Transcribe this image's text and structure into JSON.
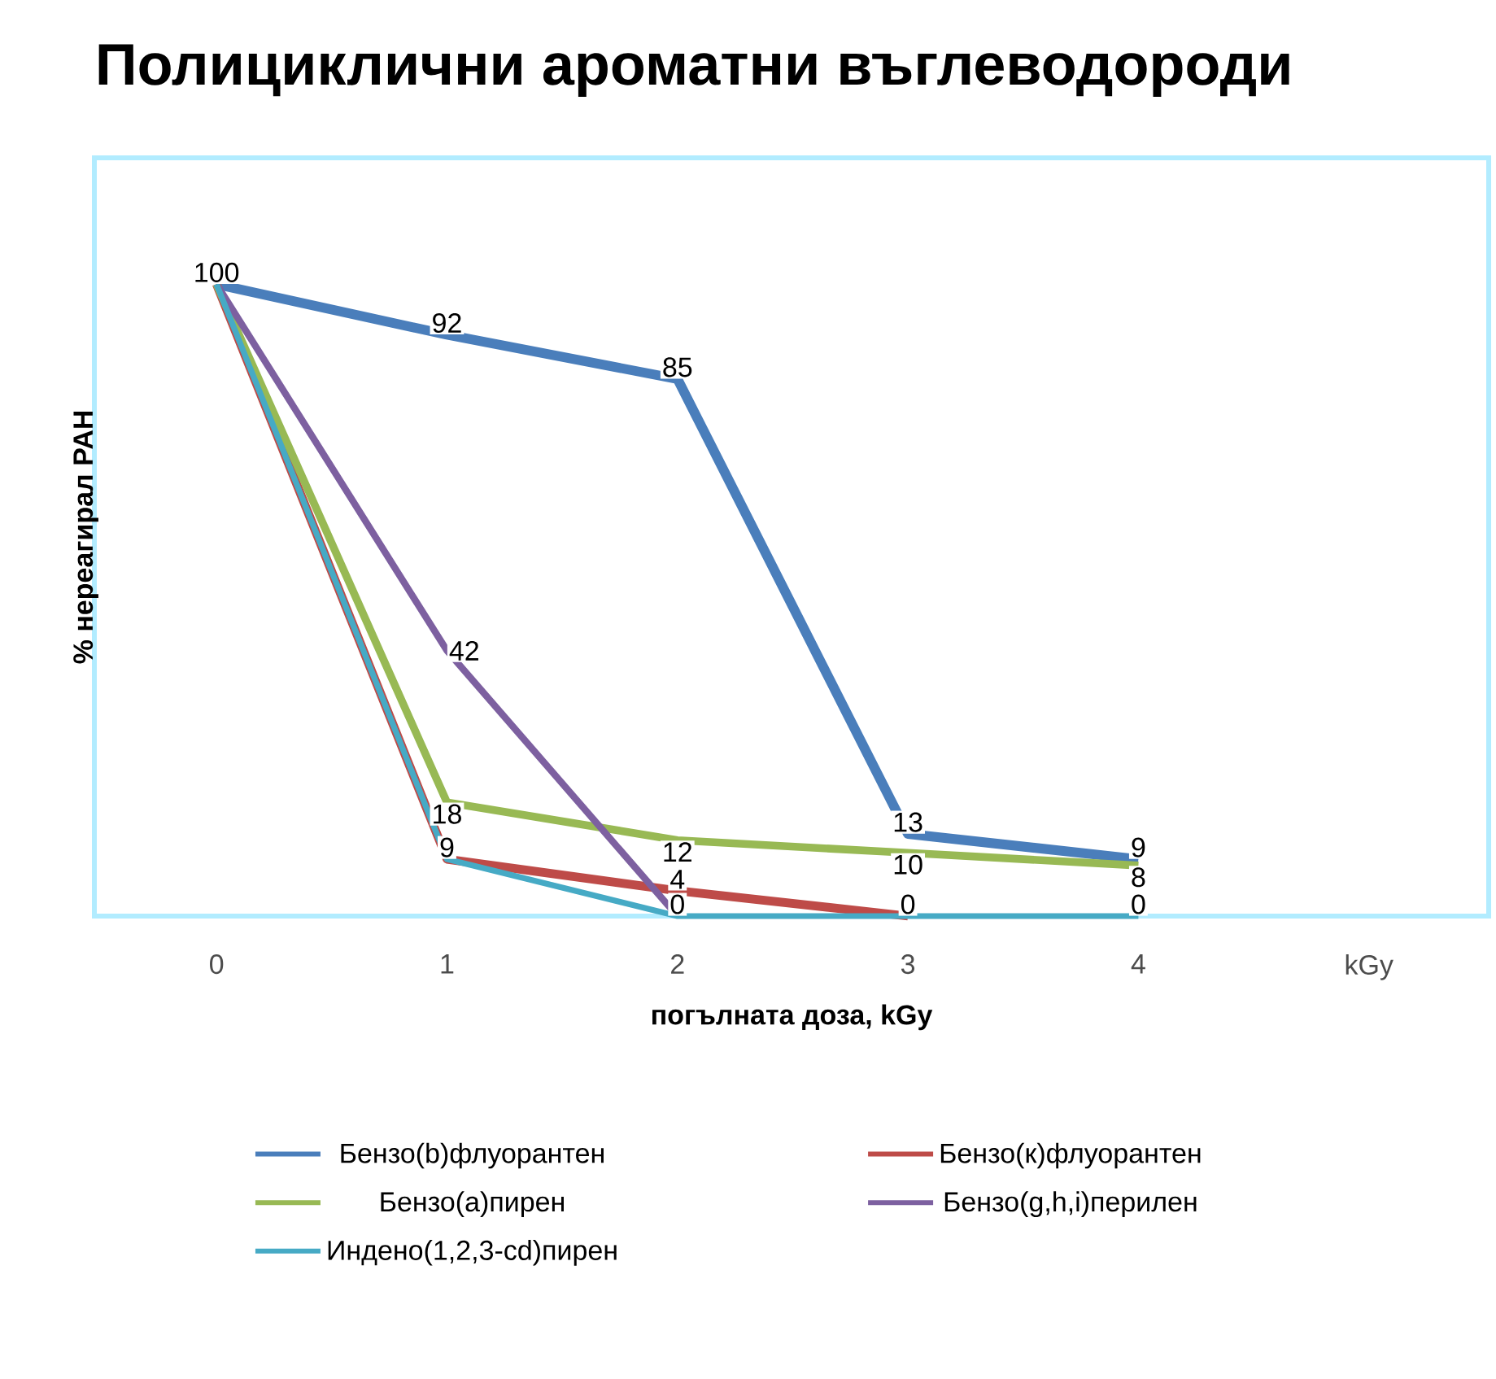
{
  "chart_data": {
    "type": "line",
    "title": "Полициклични ароматни въглеводороди",
    "xlabel": "погълната доза, kGy",
    "ylabel": "% нереагирал PAH",
    "categories": [
      "0",
      "1",
      "2",
      "3",
      "4",
      "kGy"
    ],
    "ylim": [
      0,
      120
    ],
    "tick_labels": "x",
    "legend": "bottom",
    "grid": false,
    "marker": "none",
    "line_style": "solid",
    "series": [
      {
        "name": "Бензо(b)флуорантен",
        "color": "#4a7ebb",
        "values": [
          100,
          92,
          85,
          13,
          9,
          null
        ],
        "value_labels": [
          "100",
          "92",
          "85",
          "13",
          "9",
          null
        ]
      },
      {
        "name": "Бензо(к)флуорантен",
        "color": "#be4b48",
        "values": [
          100,
          9,
          4,
          0,
          null,
          null
        ],
        "value_labels": [
          null,
          "9",
          "4",
          null,
          null,
          null
        ]
      },
      {
        "name": "Бензо(a)пирен",
        "color": "#98b954",
        "values": [
          100,
          18,
          12,
          10,
          8,
          null
        ],
        "value_labels": [
          null,
          "18",
          "12",
          "10",
          "8",
          null
        ]
      },
      {
        "name": "Бензо(g,h,i)перилен",
        "color": "#7d60a0",
        "values": [
          100,
          42,
          0,
          null,
          null,
          null
        ],
        "value_labels": [
          null,
          "42",
          null,
          null,
          null,
          null
        ]
      },
      {
        "name": "Индено(1,2,3-cd)пирен",
        "color": "#46aac5",
        "values": [
          100,
          9,
          0,
          0,
          0,
          null
        ],
        "value_labels": [
          null,
          null,
          "0",
          "0",
          "0",
          null
        ]
      }
    ]
  }
}
